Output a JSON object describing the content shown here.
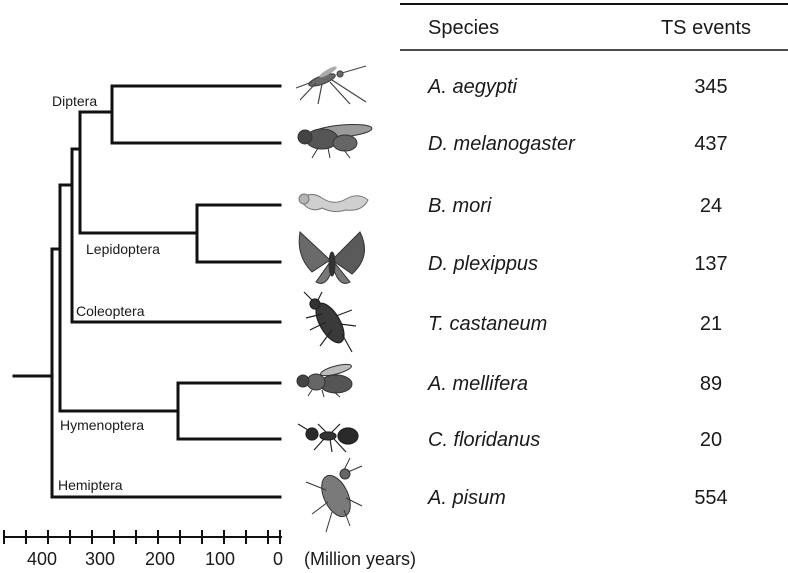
{
  "header": {
    "species": "Species",
    "events": "TS events"
  },
  "clades": {
    "diptera": "Diptera",
    "lepidoptera": "Lepidoptera",
    "coleoptera": "Coleoptera",
    "hymenoptera": "Hymenoptera",
    "hemiptera": "Hemiptera"
  },
  "rows": [
    {
      "species": "A. aegypti",
      "events": "345",
      "icon": "mosquito-icon"
    },
    {
      "species": "D. melanogaster",
      "events": "437",
      "icon": "fruit-fly-icon"
    },
    {
      "species": "B. mori",
      "events": "24",
      "icon": "silkworm-icon"
    },
    {
      "species": "D. plexippus",
      "events": "137",
      "icon": "butterfly-icon"
    },
    {
      "species": "T. castaneum",
      "events": "21",
      "icon": "beetle-icon"
    },
    {
      "species": "A. mellifera",
      "events": "89",
      "icon": "honeybee-icon"
    },
    {
      "species": "C. floridanus",
      "events": "20",
      "icon": "ant-icon"
    },
    {
      "species": "A. pisum",
      "events": "554",
      "icon": "aphid-icon"
    }
  ],
  "axis": {
    "ticks": [
      "400",
      "300",
      "200",
      "100",
      "0"
    ],
    "unit": "(Million years)"
  },
  "colors": {
    "line": "#111111",
    "insect": "#555555"
  }
}
